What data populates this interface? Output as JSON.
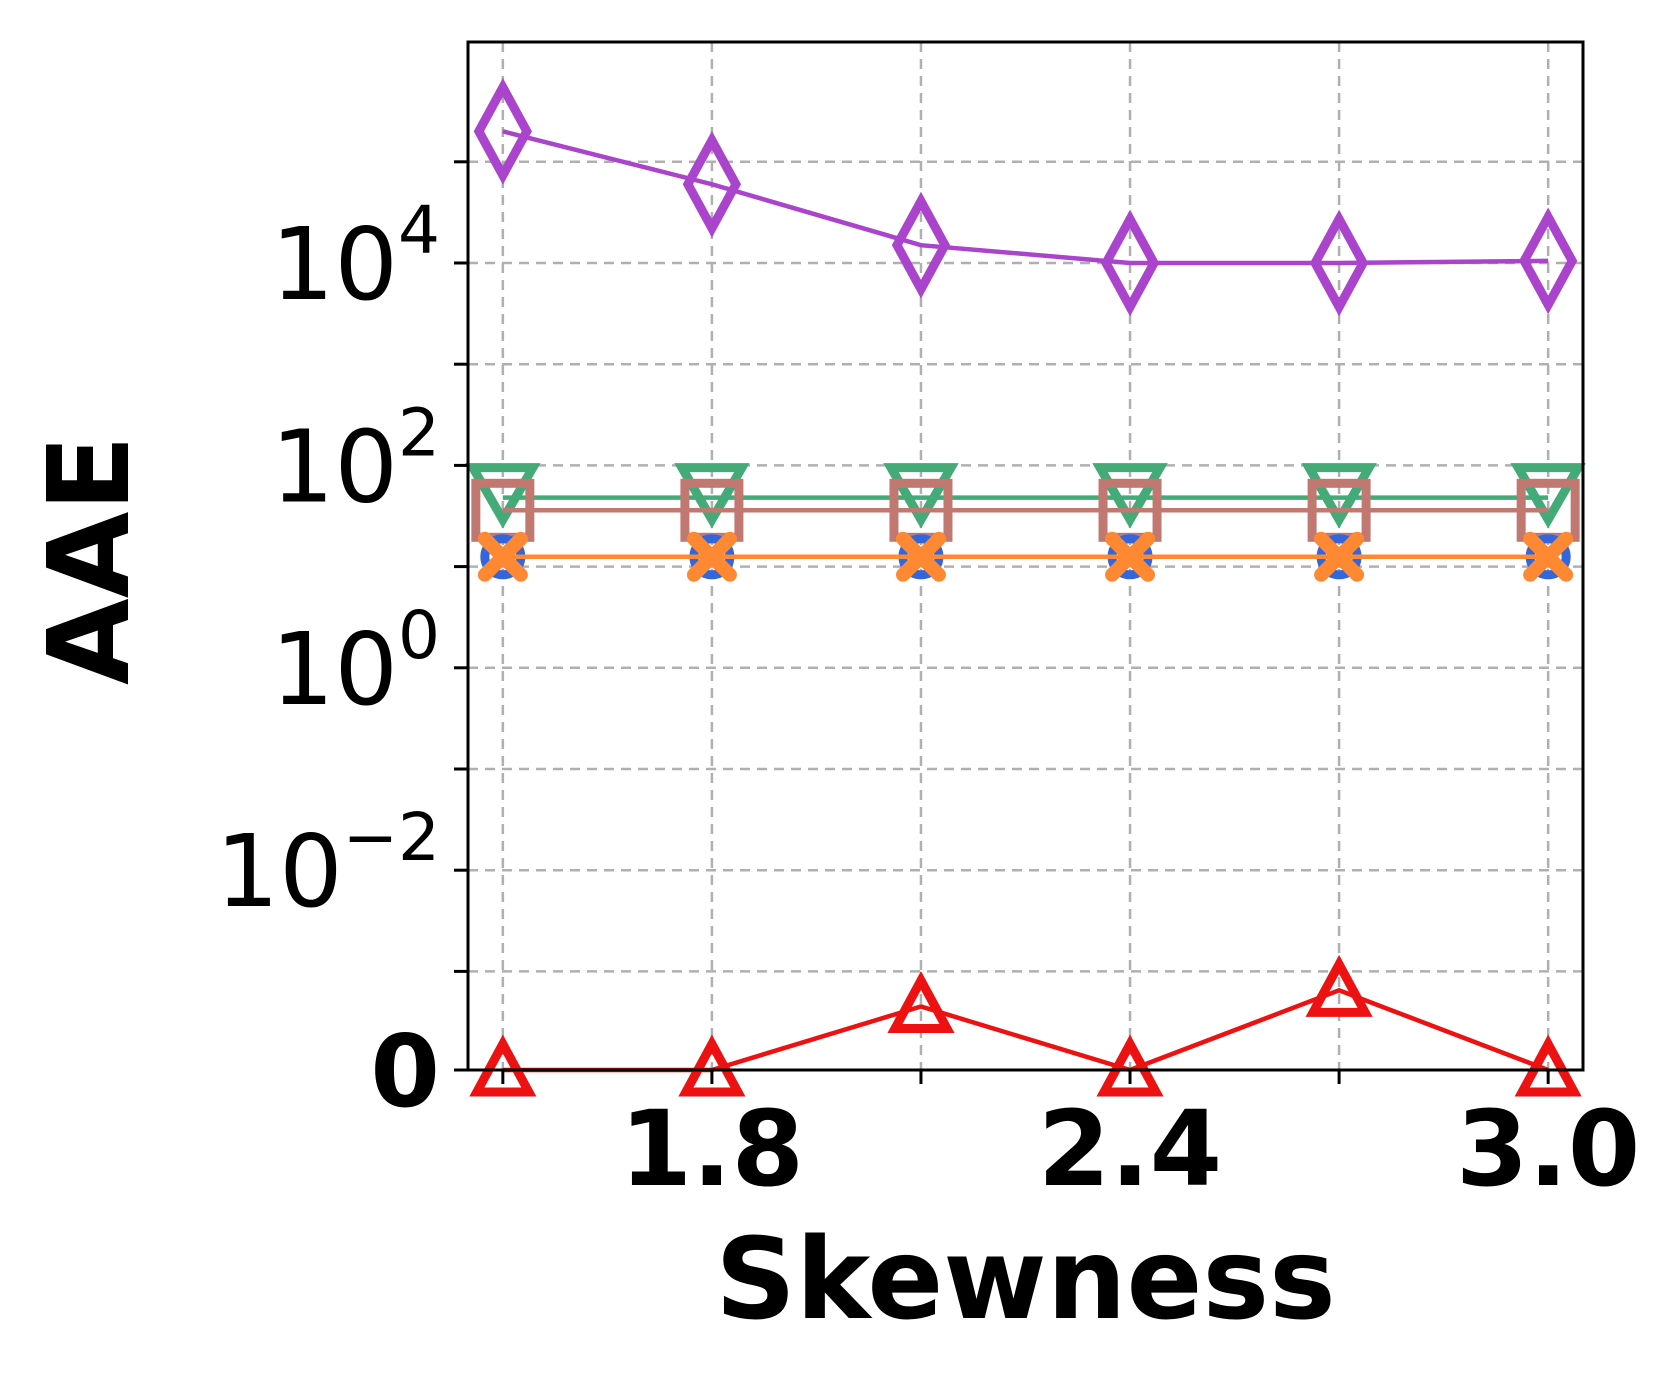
{
  "chart_data": {
    "type": "line",
    "title": "",
    "xlabel": "Skewness",
    "ylabel": "AAE",
    "yscale": "symlog",
    "x": [
      1.5,
      1.8,
      2.1,
      2.4,
      2.7,
      3.0
    ],
    "xticks": [
      {
        "value": 1.8,
        "label": "1.8"
      },
      {
        "value": 2.4,
        "label": "2.4"
      },
      {
        "value": 3.0,
        "label": "3.0"
      }
    ],
    "yticks": [
      {
        "exp": 4,
        "base": "10",
        "sup": "4"
      },
      {
        "exp": 2,
        "base": "10",
        "sup": "2"
      },
      {
        "exp": 0,
        "base": "10",
        "sup": "0"
      },
      {
        "exp": -2,
        "base": "10",
        "sup": "−2"
      },
      {
        "exp": null,
        "label": "0"
      }
    ],
    "grid": true,
    "series": [
      {
        "name": "purple-diamond",
        "color": "#aa44cc",
        "marker": "diamond",
        "values": [
          200000,
          60000,
          15000,
          10000,
          10000,
          10500
        ]
      },
      {
        "name": "green-triangle-down",
        "color": "#44aa77",
        "marker": "triangle-down",
        "values": [
          48,
          48,
          48,
          48,
          48,
          48
        ]
      },
      {
        "name": "brown-square",
        "color": "#c07870",
        "marker": "square",
        "values": [
          36,
          36,
          36,
          36,
          36,
          36
        ]
      },
      {
        "name": "blue-circle",
        "color": "#3366dd",
        "marker": "circle",
        "values": [
          12.5,
          12.5,
          12.5,
          12.5,
          12.5,
          12.5
        ]
      },
      {
        "name": "orange-x",
        "color": "#ff8833",
        "marker": "x",
        "values": [
          12.5,
          12.5,
          12.5,
          12.5,
          12.5,
          12.5
        ]
      },
      {
        "name": "red-triangle-up",
        "color": "#ee1111",
        "marker": "triangle-up",
        "values": [
          0,
          0,
          0.00045,
          0,
          0.00065,
          0
        ]
      }
    ]
  }
}
